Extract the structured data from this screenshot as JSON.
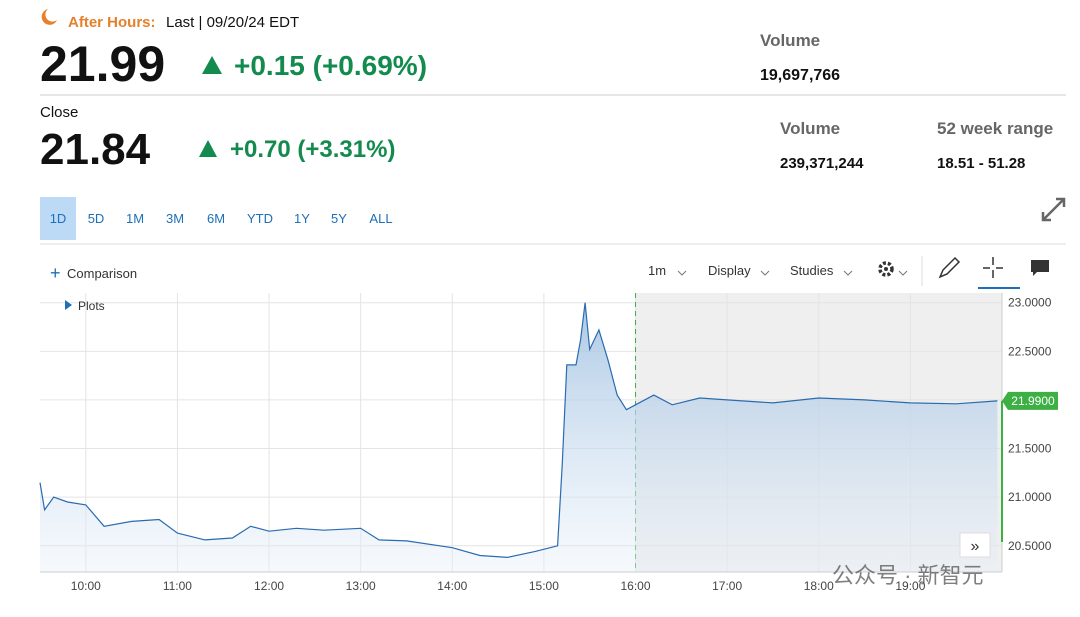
{
  "header": {
    "session_label": "After Hours:",
    "last_label": "Last | 09/20/24 EDT",
    "price": "21.99",
    "change": "+0.15 (+0.69%)",
    "volume_label": "Volume",
    "volume": "19,697,766"
  },
  "close": {
    "label": "Close",
    "price": "21.84",
    "change": "+0.70 (+3.31%)",
    "volume_label": "Volume",
    "volume": "239,371,244",
    "range_label": "52 week range",
    "range": "18.51 - 51.28"
  },
  "tabs": [
    "1D",
    "5D",
    "1M",
    "3M",
    "6M",
    "YTD",
    "1Y",
    "5Y",
    "ALL"
  ],
  "selected_tab": 0,
  "toolbar": {
    "comparison": "Comparison",
    "interval": "1m",
    "display": "Display",
    "studies": "Studies",
    "plots": "Plots"
  },
  "chart_data": {
    "type": "area",
    "x": [
      9.5,
      9.55,
      9.65,
      9.8,
      10.0,
      10.2,
      10.5,
      10.8,
      11.0,
      11.3,
      11.6,
      11.8,
      12.0,
      12.3,
      12.6,
      13.0,
      13.2,
      13.5,
      14.0,
      14.3,
      14.6,
      14.9,
      15.15,
      15.2,
      15.25,
      15.35,
      15.4,
      15.45,
      15.5,
      15.6,
      15.7,
      15.8,
      15.9,
      16.0,
      16.2,
      16.4,
      16.7,
      17.0,
      17.5,
      18.0,
      18.5,
      19.0,
      19.5,
      19.95
    ],
    "values": [
      21.15,
      20.87,
      21.0,
      20.95,
      20.92,
      20.7,
      20.75,
      20.77,
      20.63,
      20.56,
      20.58,
      20.7,
      20.65,
      20.68,
      20.66,
      20.68,
      20.56,
      20.55,
      20.48,
      20.4,
      20.38,
      20.44,
      20.5,
      21.33,
      22.36,
      22.36,
      22.62,
      23.0,
      22.52,
      22.72,
      22.41,
      22.05,
      21.9,
      21.95,
      22.05,
      21.95,
      22.02,
      22.0,
      21.97,
      22.02,
      22.0,
      21.97,
      21.96,
      21.99
    ],
    "color": "#2a6bb0",
    "xlim": [
      9.5,
      20
    ],
    "ylim": [
      20.23,
      23.1
    ],
    "xticks": [
      {
        "value": 10,
        "label": "10:00"
      },
      {
        "value": 11,
        "label": "11:00"
      },
      {
        "value": 12,
        "label": "12:00"
      },
      {
        "value": 13,
        "label": "13:00"
      },
      {
        "value": 14,
        "label": "14:00"
      },
      {
        "value": 15,
        "label": "15:00"
      },
      {
        "value": 16,
        "label": "16:00"
      },
      {
        "value": 17,
        "label": "17:00"
      },
      {
        "value": 18,
        "label": "18:00"
      },
      {
        "value": 19,
        "label": "19:00"
      }
    ],
    "yticks": [
      {
        "value": 20.5,
        "label": "20.5000"
      },
      {
        "value": 21,
        "label": "21.0000"
      },
      {
        "value": 21.5,
        "label": "21.5000"
      },
      {
        "value": 22,
        "label": "22.0000"
      },
      {
        "value": 22.5,
        "label": "22.5000"
      },
      {
        "value": 23,
        "label": "23.0000"
      }
    ],
    "last_value": {
      "value": 21.99,
      "label": "21.9900"
    },
    "session_close": 16,
    "grid": true
  },
  "watermark": "公众号 · 新智元"
}
